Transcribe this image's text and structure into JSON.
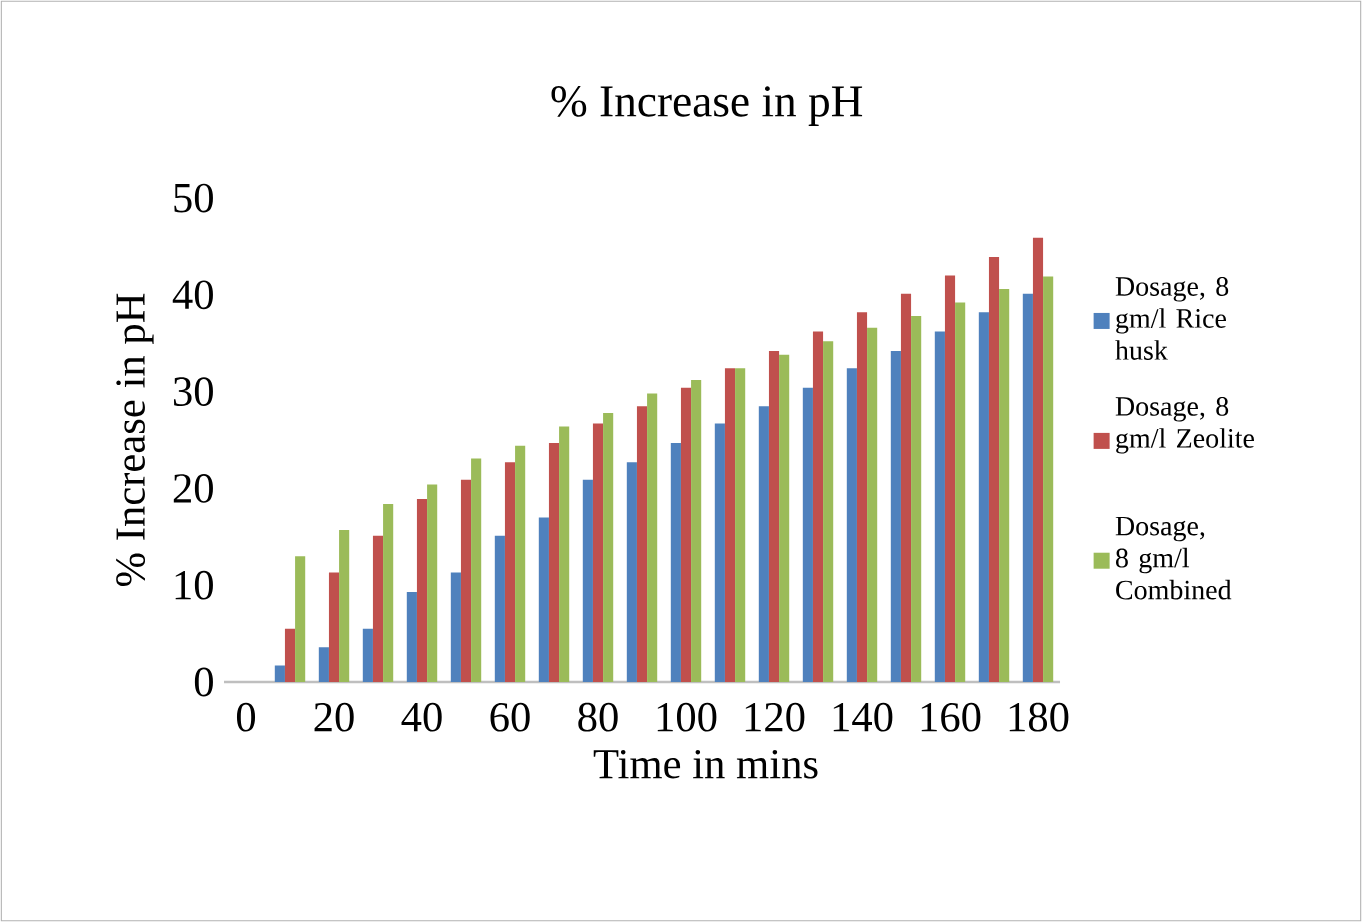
{
  "chart_data": {
    "type": "bar",
    "title": "% Increase in pH",
    "xlabel": "Time in mins",
    "ylabel": "% Increase in pH",
    "categories": [
      "0",
      null,
      "20",
      null,
      "40",
      null,
      "60",
      null,
      "80",
      null,
      "100",
      null,
      "120",
      null,
      "140",
      null,
      "160",
      null,
      "180"
    ],
    "series": [
      {
        "name": "Dosage, 8 gm/l Rice husk",
        "color": "#4f81bd",
        "values": [
          null,
          1.7,
          3.6,
          5.5,
          9.3,
          11.3,
          15.1,
          17.0,
          20.9,
          22.7,
          24.7,
          26.7,
          28.5,
          30.4,
          32.4,
          34.2,
          36.2,
          38.2,
          40.1
        ]
      },
      {
        "name": "Dosage, 8 gm/l Zeolite",
        "color": "#c0504d",
        "values": [
          null,
          5.5,
          11.3,
          15.1,
          18.9,
          20.9,
          22.7,
          24.7,
          26.7,
          28.5,
          30.4,
          32.4,
          34.2,
          36.2,
          38.2,
          40.1,
          42.0,
          43.9,
          45.9
        ]
      },
      {
        "name": "Dosage, 8 gm/l Combined",
        "color": "#9bbb59",
        "values": [
          null,
          13.0,
          15.7,
          18.4,
          20.4,
          23.1,
          24.4,
          26.4,
          27.8,
          29.8,
          31.2,
          32.4,
          33.8,
          35.2,
          36.6,
          37.8,
          39.2,
          40.6,
          41.9
        ]
      }
    ],
    "ylim": [
      0,
      50
    ],
    "yticks": [
      0,
      10,
      20,
      30,
      40,
      50
    ],
    "legend": "right"
  }
}
